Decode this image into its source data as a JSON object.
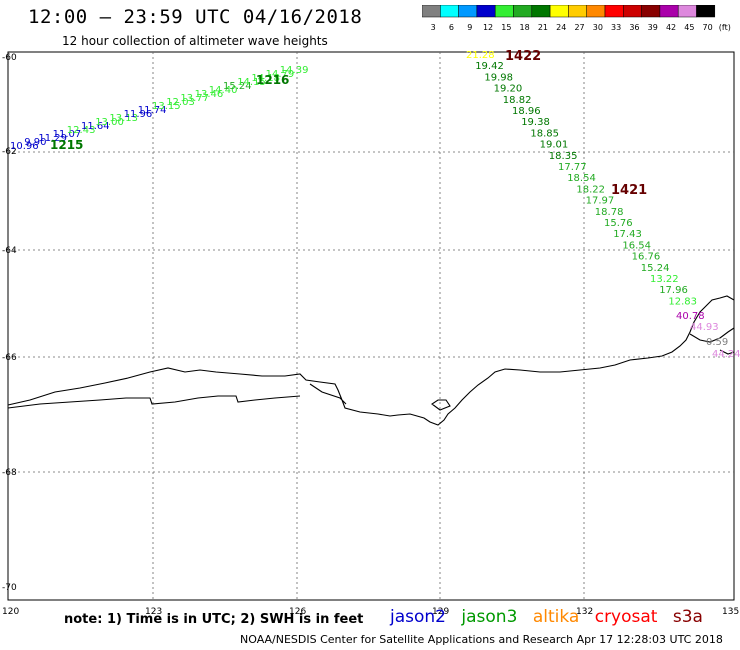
{
  "header": {
    "title": "12:00 – 23:59 UTC 04/16/2018",
    "subtitle": "12 hour collection of altimeter wave heights"
  },
  "color_scale": {
    "labels": [
      "3",
      "6",
      "9",
      "12",
      "15",
      "18",
      "21",
      "24",
      "27",
      "30",
      "33",
      "36",
      "39",
      "42",
      "45",
      "70"
    ],
    "unit": "(ft)",
    "colors": [
      "#808080",
      "#00ffff",
      "#0099ff",
      "#0000cc",
      "#33ee33",
      "#22aa22",
      "#007700",
      "#ffff00",
      "#ffcc00",
      "#ff8800",
      "#ff0000",
      "#cc0000",
      "#880000",
      "#aa00aa",
      "#dd88dd",
      "#000000"
    ]
  },
  "map": {
    "lat_labels": [
      "-60",
      "-62",
      "-64",
      "-66",
      "-68",
      "-70"
    ],
    "lon_labels": [
      "120",
      "123",
      "126",
      "129",
      "132",
      "135"
    ]
  },
  "tracks": [
    {
      "id": "jason3",
      "time_labels": [
        "1215",
        "1216"
      ],
      "values": [
        "10.96",
        "9.90",
        "11.29",
        "11.07",
        "12.43",
        "11.64",
        "13.00",
        "13.13",
        "11.96",
        "11.74",
        "13.15",
        "12.03",
        "13.77",
        "13.46",
        "14.40",
        "15.24",
        "14.15",
        "14.18",
        "14.79",
        "14.39"
      ],
      "colors": [
        "#0000cc",
        "#0000cc",
        "#0000cc",
        "#0000cc",
        "#33ee33",
        "#0000cc",
        "#33ee33",
        "#33ee33",
        "#0000cc",
        "#0000cc",
        "#33ee33",
        "#33ee33",
        "#33ee33",
        "#33ee33",
        "#33ee33",
        "#22aa22",
        "#33ee33",
        "#33ee33",
        "#33ee33",
        "#33ee33"
      ]
    },
    {
      "id": "jason3-desc",
      "time_labels": [
        "1422",
        "1421"
      ],
      "values": [
        "21.28",
        "19.42",
        "19.98",
        "19.20",
        "18.82",
        "18.96",
        "19.38",
        "18.85",
        "19.01",
        "18.35",
        "17.77",
        "18.54",
        "18.22",
        "17.97",
        "18.78",
        "15.76",
        "17.43",
        "16.54",
        "16.76",
        "15.24",
        "13.22",
        "17.96",
        "12.83"
      ],
      "colors": [
        "#ffff00",
        "#007700",
        "#007700",
        "#007700",
        "#007700",
        "#007700",
        "#007700",
        "#007700",
        "#007700",
        "#007700",
        "#22aa22",
        "#22aa22",
        "#22aa22",
        "#22aa22",
        "#22aa22",
        "#22aa22",
        "#22aa22",
        "#22aa22",
        "#22aa22",
        "#22aa22",
        "#33ee33",
        "#22aa22",
        "#33ee33"
      ]
    },
    {
      "id": "coastal",
      "values": [
        "40.78",
        "44.93",
        "0.59",
        "44.24"
      ],
      "colors": [
        "#aa00aa",
        "#dd88dd",
        "#808080",
        "#dd88dd"
      ]
    }
  ],
  "footer": {
    "note": "note:  1) Time is in UTC;  2) SWH is in feet",
    "satellites": [
      {
        "name": "jason2",
        "color": "#0000cc"
      },
      {
        "name": "jason3",
        "color": "#009900"
      },
      {
        "name": "altika",
        "color": "#ff8800"
      },
      {
        "name": "cryosat",
        "color": "#ff0000"
      },
      {
        "name": "s3a",
        "color": "#880000"
      }
    ],
    "credit": "NOAA/NESDIS Center for Satellite Applications and Research     Apr 17 12:28:03 UTC 2018"
  }
}
